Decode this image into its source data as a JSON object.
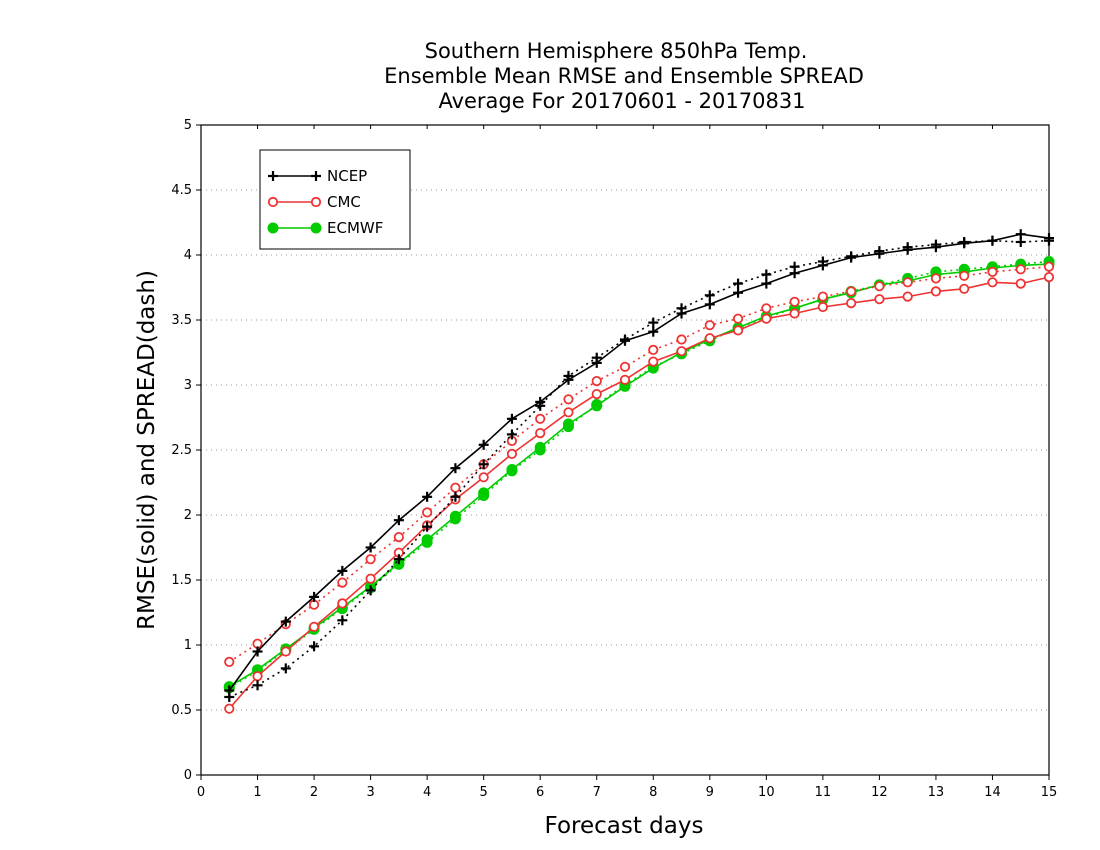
{
  "chart_data": {
    "type": "line",
    "title_lines": [
      "Southern Hemisphere 850hPa Temp.",
      "Ensemble Mean RMSE and Ensemble SPREAD",
      "Average For 20170601 - 20170831"
    ],
    "xlabel": "Forecast days",
    "ylabel": "RMSE(solid) and SPREAD(dash)",
    "xlim": [
      0,
      15
    ],
    "ylim": [
      0,
      5
    ],
    "xticks": [
      "0",
      "1",
      "2",
      "3",
      "4",
      "5",
      "6",
      "7",
      "8",
      "9",
      "10",
      "11",
      "12",
      "13",
      "14",
      "15"
    ],
    "yticks": [
      "0",
      "0.5",
      "1",
      "1.5",
      "2",
      "2.5",
      "3",
      "3.5",
      "4",
      "4.5",
      "5"
    ],
    "grid": "horizontal dotted",
    "legend_position": "top-left",
    "x": [
      0.5,
      1,
      1.5,
      2,
      2.5,
      3,
      3.5,
      4,
      4.5,
      5,
      5.5,
      6,
      6.5,
      7,
      7.5,
      8,
      8.5,
      9,
      9.5,
      10,
      10.5,
      11,
      11.5,
      12,
      12.5,
      13,
      13.5,
      14,
      14.5,
      15
    ],
    "series": [
      {
        "name": "NCEP",
        "color": "#000000",
        "marker": "plus",
        "rmse": [
          0.65,
          0.95,
          1.18,
          1.37,
          1.57,
          1.75,
          1.96,
          2.14,
          2.36,
          2.54,
          2.74,
          2.87,
          3.04,
          3.17,
          3.34,
          3.41,
          3.55,
          3.62,
          3.71,
          3.78,
          3.86,
          3.92,
          3.98,
          4.01,
          4.04,
          4.06,
          4.09,
          4.11,
          4.16,
          4.13
        ],
        "spread": [
          0.6,
          0.69,
          0.82,
          0.99,
          1.19,
          1.42,
          1.66,
          1.91,
          2.14,
          2.39,
          2.62,
          2.84,
          3.07,
          3.21,
          3.35,
          3.48,
          3.59,
          3.69,
          3.78,
          3.85,
          3.91,
          3.95,
          3.99,
          4.03,
          4.06,
          4.08,
          4.1,
          4.11,
          4.1,
          4.11
        ]
      },
      {
        "name": "CMC",
        "color": "#ee3333",
        "marker": "open-circle",
        "rmse": [
          0.51,
          0.76,
          0.95,
          1.14,
          1.32,
          1.51,
          1.71,
          1.92,
          2.12,
          2.29,
          2.47,
          2.63,
          2.79,
          2.93,
          3.04,
          3.18,
          3.26,
          3.36,
          3.42,
          3.51,
          3.55,
          3.6,
          3.63,
          3.66,
          3.68,
          3.72,
          3.74,
          3.79,
          3.78,
          3.83
        ],
        "spread": [
          0.87,
          1.01,
          1.16,
          1.31,
          1.48,
          1.66,
          1.83,
          2.02,
          2.21,
          2.39,
          2.57,
          2.74,
          2.89,
          3.03,
          3.14,
          3.27,
          3.35,
          3.46,
          3.51,
          3.59,
          3.64,
          3.68,
          3.72,
          3.76,
          3.79,
          3.82,
          3.84,
          3.87,
          3.89,
          3.91
        ]
      },
      {
        "name": "ECMWF",
        "color": "#00cc00",
        "marker": "filled-circle",
        "rmse": [
          0.68,
          0.81,
          0.97,
          1.13,
          1.29,
          1.45,
          1.63,
          1.81,
          1.99,
          2.17,
          2.35,
          2.52,
          2.7,
          2.84,
          2.99,
          3.13,
          3.25,
          3.35,
          3.44,
          3.53,
          3.59,
          3.66,
          3.71,
          3.77,
          3.8,
          3.85,
          3.87,
          3.9,
          3.92,
          3.93
        ],
        "spread": [
          0.67,
          0.8,
          0.96,
          1.12,
          1.28,
          1.44,
          1.62,
          1.79,
          1.97,
          2.15,
          2.34,
          2.5,
          2.68,
          2.85,
          3.0,
          3.14,
          3.24,
          3.34,
          3.44,
          3.52,
          3.59,
          3.66,
          3.72,
          3.77,
          3.82,
          3.87,
          3.89,
          3.91,
          3.93,
          3.95
        ]
      }
    ]
  }
}
